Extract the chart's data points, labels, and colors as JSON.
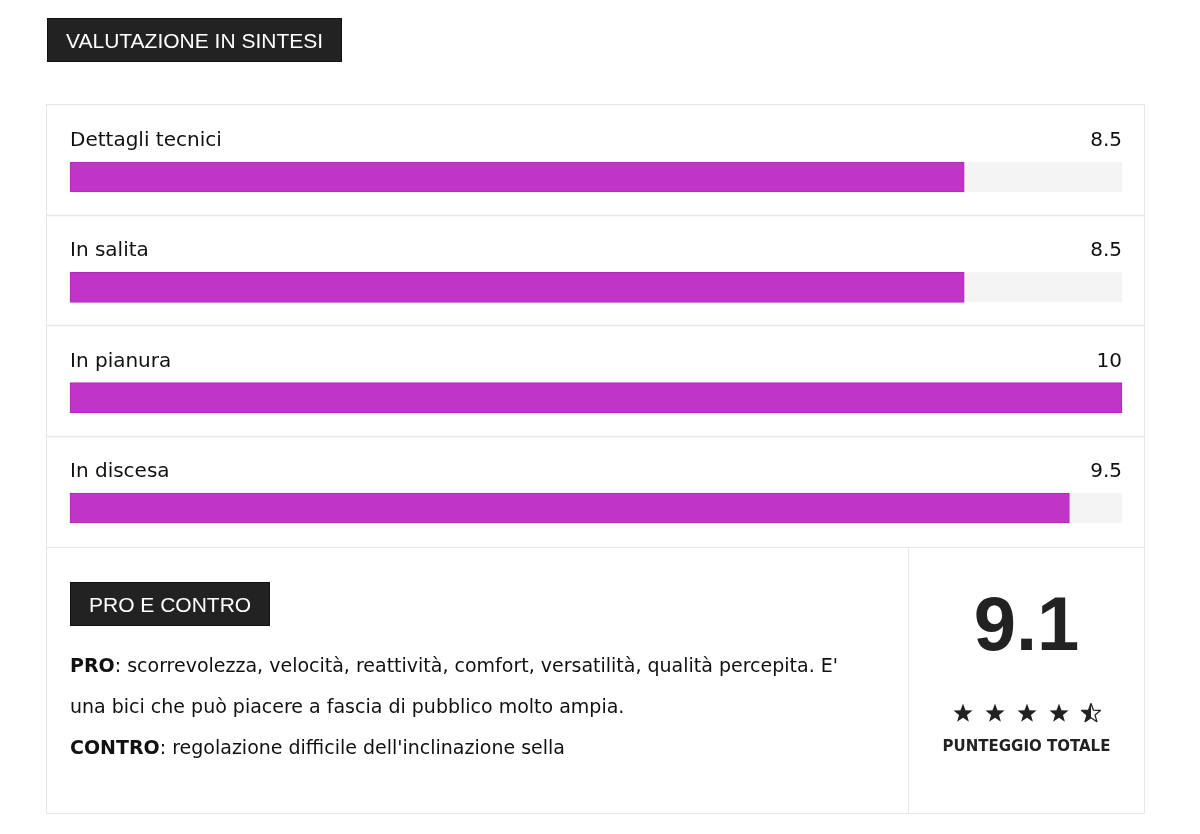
{
  "chart_data": [
    {
      "type": "bar",
      "title": "VALUTAZIONE IN SINTESI",
      "orientation": "horizontal",
      "categories": [
        "Dettagli tecnici",
        "In salita",
        "In pianura",
        "In discesa"
      ],
      "values": [
        8.5,
        8.5,
        10,
        9.5
      ],
      "color": "#c034c8",
      "xlim": [
        0,
        10
      ],
      "data_labels": true,
      "tick_labels": "y"
    },
    {
      "type": "other",
      "title": "PRO E CONTRO",
      "annotations": [
        "PRO: scorrevolezza, velocità, reattività, comfort, versatilità, qualità percepita. E' una bici che può piacere a fascia di pubblico molto ampia.",
        "CONTRO: regolazione difficile dell'inclinazione sella",
        "9.1",
        "PUNTEGGIO TOTALE"
      ]
    }
  ]
}
